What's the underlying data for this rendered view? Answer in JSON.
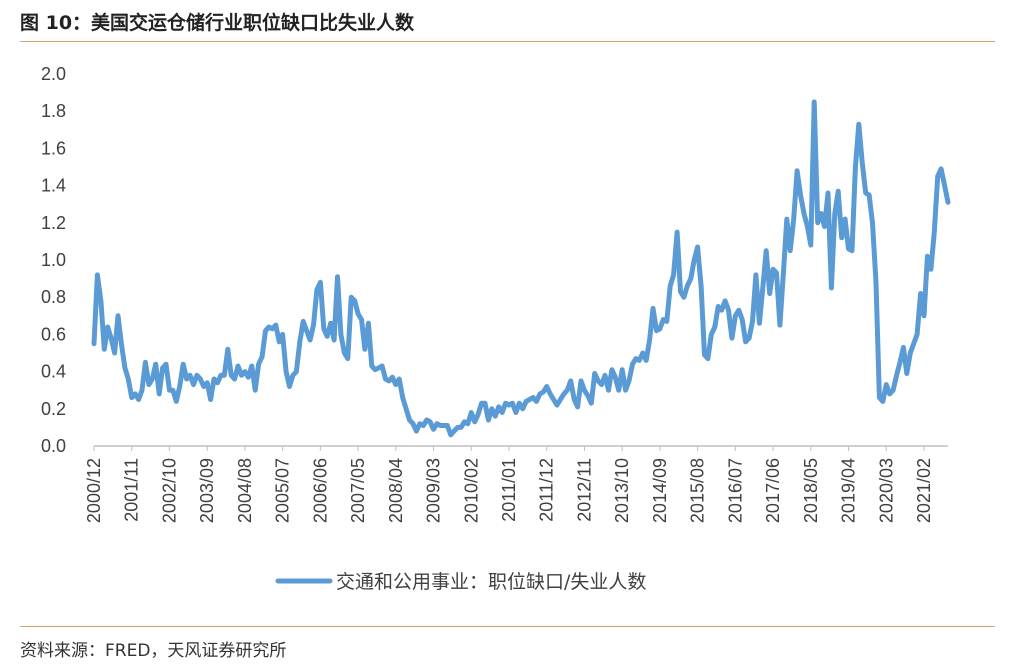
{
  "figure": {
    "title": "图 10：美国交运仓储行业职位缺口比失业人数",
    "source": "资料来源：FRED，天风证券研究所"
  },
  "colors": {
    "line": "#5B9BD5",
    "rule": "#E0A060",
    "axis": "#BFBFBF"
  },
  "chart_data": {
    "type": "line",
    "title": "",
    "xlabel": "",
    "ylabel": "",
    "ylim": [
      0,
      2.0
    ],
    "yticks": [
      "0.0",
      "0.2",
      "0.4",
      "0.6",
      "0.8",
      "1.0",
      "1.2",
      "1.4",
      "1.6",
      "1.8",
      "2.0"
    ],
    "xticks": [
      "2000/12",
      "2001/11",
      "2002/10",
      "2003/09",
      "2004/08",
      "2005/07",
      "2006/06",
      "2007/05",
      "2008/04",
      "2009/03",
      "2010/02",
      "2011/01",
      "2011/12",
      "2012/11",
      "2013/10",
      "2014/09",
      "2015/08",
      "2016/07",
      "2017/06",
      "2018/05",
      "2019/04",
      "2020/03",
      "2021/02"
    ],
    "x_range": [
      "2000/12",
      "2021/09"
    ],
    "grid": false,
    "legend": "bottom",
    "series": [
      {
        "name": "交通和公用事业：职位缺口/失业人数",
        "points": [
          [
            "2000/12",
            0.55
          ],
          [
            "2001/01",
            0.92
          ],
          [
            "2001/02",
            0.78
          ],
          [
            "2001/03",
            0.52
          ],
          [
            "2001/04",
            0.64
          ],
          [
            "2001/05",
            0.58
          ],
          [
            "2001/06",
            0.5
          ],
          [
            "2001/07",
            0.7
          ],
          [
            "2001/08",
            0.55
          ],
          [
            "2001/09",
            0.42
          ],
          [
            "2001/10",
            0.36
          ],
          [
            "2001/11",
            0.26
          ],
          [
            "2001/12",
            0.28
          ],
          [
            "2002/01",
            0.25
          ],
          [
            "2002/02",
            0.3
          ],
          [
            "2002/03",
            0.45
          ],
          [
            "2002/04",
            0.33
          ],
          [
            "2002/05",
            0.36
          ],
          [
            "2002/06",
            0.44
          ],
          [
            "2002/07",
            0.28
          ],
          [
            "2002/08",
            0.42
          ],
          [
            "2002/09",
            0.44
          ],
          [
            "2002/10",
            0.3
          ],
          [
            "2002/11",
            0.3
          ],
          [
            "2002/12",
            0.24
          ],
          [
            "2003/01",
            0.32
          ],
          [
            "2003/02",
            0.44
          ],
          [
            "2003/03",
            0.36
          ],
          [
            "2003/04",
            0.38
          ],
          [
            "2003/05",
            0.33
          ],
          [
            "2003/06",
            0.38
          ],
          [
            "2003/07",
            0.36
          ],
          [
            "2003/08",
            0.32
          ],
          [
            "2003/09",
            0.34
          ],
          [
            "2003/10",
            0.25
          ],
          [
            "2003/11",
            0.36
          ],
          [
            "2003/12",
            0.34
          ],
          [
            "2004/01",
            0.38
          ],
          [
            "2004/02",
            0.38
          ],
          [
            "2004/03",
            0.52
          ],
          [
            "2004/04",
            0.38
          ],
          [
            "2004/05",
            0.36
          ],
          [
            "2004/06",
            0.43
          ],
          [
            "2004/07",
            0.38
          ],
          [
            "2004/08",
            0.4
          ],
          [
            "2004/09",
            0.37
          ],
          [
            "2004/10",
            0.43
          ],
          [
            "2004/11",
            0.3
          ],
          [
            "2004/12",
            0.44
          ],
          [
            "2005/01",
            0.48
          ],
          [
            "2005/02",
            0.62
          ],
          [
            "2005/03",
            0.64
          ],
          [
            "2005/04",
            0.63
          ],
          [
            "2005/05",
            0.65
          ],
          [
            "2005/06",
            0.56
          ],
          [
            "2005/07",
            0.6
          ],
          [
            "2005/08",
            0.4
          ],
          [
            "2005/09",
            0.32
          ],
          [
            "2005/10",
            0.38
          ],
          [
            "2005/11",
            0.4
          ],
          [
            "2005/12",
            0.56
          ],
          [
            "2006/01",
            0.67
          ],
          [
            "2006/02",
            0.62
          ],
          [
            "2006/03",
            0.57
          ],
          [
            "2006/04",
            0.65
          ],
          [
            "2006/05",
            0.84
          ],
          [
            "2006/06",
            0.88
          ],
          [
            "2006/07",
            0.63
          ],
          [
            "2006/08",
            0.59
          ],
          [
            "2006/09",
            0.66
          ],
          [
            "2006/10",
            0.57
          ],
          [
            "2006/11",
            0.91
          ],
          [
            "2006/12",
            0.6
          ],
          [
            "2007/01",
            0.5
          ],
          [
            "2007/02",
            0.47
          ],
          [
            "2007/03",
            0.8
          ],
          [
            "2007/04",
            0.78
          ],
          [
            "2007/05",
            0.71
          ],
          [
            "2007/06",
            0.68
          ],
          [
            "2007/07",
            0.52
          ],
          [
            "2007/08",
            0.66
          ],
          [
            "2007/09",
            0.43
          ],
          [
            "2007/10",
            0.41
          ],
          [
            "2007/11",
            0.42
          ],
          [
            "2007/12",
            0.43
          ],
          [
            "2008/01",
            0.36
          ],
          [
            "2008/02",
            0.35
          ],
          [
            "2008/03",
            0.37
          ],
          [
            "2008/04",
            0.33
          ],
          [
            "2008/05",
            0.36
          ],
          [
            "2008/06",
            0.26
          ],
          [
            "2008/07",
            0.2
          ],
          [
            "2008/08",
            0.14
          ],
          [
            "2008/09",
            0.12
          ],
          [
            "2008/10",
            0.08
          ],
          [
            "2008/11",
            0.12
          ],
          [
            "2008/12",
            0.11
          ],
          [
            "2009/01",
            0.14
          ],
          [
            "2009/02",
            0.13
          ],
          [
            "2009/03",
            0.09
          ],
          [
            "2009/04",
            0.12
          ],
          [
            "2009/05",
            0.11
          ],
          [
            "2009/06",
            0.11
          ],
          [
            "2009/07",
            0.11
          ],
          [
            "2009/08",
            0.06
          ],
          [
            "2009/09",
            0.08
          ],
          [
            "2009/10",
            0.1
          ],
          [
            "2009/11",
            0.1
          ],
          [
            "2009/12",
            0.13
          ],
          [
            "2010/01",
            0.12
          ],
          [
            "2010/02",
            0.18
          ],
          [
            "2010/03",
            0.13
          ],
          [
            "2010/04",
            0.17
          ],
          [
            "2010/05",
            0.23
          ],
          [
            "2010/06",
            0.23
          ],
          [
            "2010/07",
            0.14
          ],
          [
            "2010/08",
            0.2
          ],
          [
            "2010/09",
            0.16
          ],
          [
            "2010/10",
            0.21
          ],
          [
            "2010/11",
            0.18
          ],
          [
            "2010/12",
            0.23
          ],
          [
            "2011/01",
            0.22
          ],
          [
            "2011/02",
            0.23
          ],
          [
            "2011/03",
            0.18
          ],
          [
            "2011/04",
            0.23
          ],
          [
            "2011/05",
            0.2
          ],
          [
            "2011/06",
            0.24
          ],
          [
            "2011/07",
            0.25
          ],
          [
            "2011/08",
            0.26
          ],
          [
            "2011/09",
            0.24
          ],
          [
            "2011/10",
            0.28
          ],
          [
            "2011/11",
            0.29
          ],
          [
            "2011/12",
            0.32
          ],
          [
            "2012/01",
            0.28
          ],
          [
            "2012/02",
            0.25
          ],
          [
            "2012/03",
            0.22
          ],
          [
            "2012/04",
            0.25
          ],
          [
            "2012/05",
            0.28
          ],
          [
            "2012/06",
            0.3
          ],
          [
            "2012/07",
            0.35
          ],
          [
            "2012/08",
            0.25
          ],
          [
            "2012/09",
            0.21
          ],
          [
            "2012/10",
            0.35
          ],
          [
            "2012/11",
            0.3
          ],
          [
            "2012/12",
            0.27
          ],
          [
            "2013/01",
            0.23
          ],
          [
            "2013/02",
            0.39
          ],
          [
            "2013/03",
            0.35
          ],
          [
            "2013/04",
            0.33
          ],
          [
            "2013/05",
            0.38
          ],
          [
            "2013/06",
            0.3
          ],
          [
            "2013/07",
            0.41
          ],
          [
            "2013/08",
            0.37
          ],
          [
            "2013/09",
            0.3
          ],
          [
            "2013/10",
            0.41
          ],
          [
            "2013/11",
            0.3
          ],
          [
            "2013/12",
            0.35
          ],
          [
            "2014/01",
            0.44
          ],
          [
            "2014/02",
            0.47
          ],
          [
            "2014/03",
            0.46
          ],
          [
            "2014/04",
            0.5
          ],
          [
            "2014/05",
            0.46
          ],
          [
            "2014/06",
            0.57
          ],
          [
            "2014/07",
            0.74
          ],
          [
            "2014/08",
            0.62
          ],
          [
            "2014/09",
            0.63
          ],
          [
            "2014/10",
            0.68
          ],
          [
            "2014/11",
            0.67
          ],
          [
            "2014/12",
            0.86
          ],
          [
            "2015/01",
            0.92
          ],
          [
            "2015/02",
            1.15
          ],
          [
            "2015/03",
            0.83
          ],
          [
            "2015/04",
            0.8
          ],
          [
            "2015/05",
            0.86
          ],
          [
            "2015/06",
            0.9
          ],
          [
            "2015/07",
            1.0
          ],
          [
            "2015/08",
            1.07
          ],
          [
            "2015/09",
            0.86
          ],
          [
            "2015/10",
            0.49
          ],
          [
            "2015/11",
            0.47
          ],
          [
            "2015/12",
            0.6
          ],
          [
            "2016/01",
            0.64
          ],
          [
            "2016/02",
            0.75
          ],
          [
            "2016/03",
            0.73
          ],
          [
            "2016/04",
            0.78
          ],
          [
            "2016/05",
            0.73
          ],
          [
            "2016/06",
            0.58
          ],
          [
            "2016/07",
            0.7
          ],
          [
            "2016/08",
            0.73
          ],
          [
            "2016/09",
            0.68
          ],
          [
            "2016/10",
            0.56
          ],
          [
            "2016/11",
            0.58
          ],
          [
            "2016/12",
            0.67
          ],
          [
            "2017/01",
            0.92
          ],
          [
            "2017/02",
            0.66
          ],
          [
            "2017/03",
            0.85
          ],
          [
            "2017/04",
            1.05
          ],
          [
            "2017/05",
            0.82
          ],
          [
            "2017/06",
            0.95
          ],
          [
            "2017/07",
            0.93
          ],
          [
            "2017/08",
            0.65
          ],
          [
            "2017/09",
            0.93
          ],
          [
            "2017/10",
            1.22
          ],
          [
            "2017/11",
            1.05
          ],
          [
            "2017/12",
            1.22
          ],
          [
            "2018/01",
            1.48
          ],
          [
            "2018/02",
            1.35
          ],
          [
            "2018/03",
            1.25
          ],
          [
            "2018/04",
            1.18
          ],
          [
            "2018/05",
            1.08
          ],
          [
            "2018/06",
            1.85
          ],
          [
            "2018/07",
            1.2
          ],
          [
            "2018/08",
            1.25
          ],
          [
            "2018/09",
            1.18
          ],
          [
            "2018/10",
            1.36
          ],
          [
            "2018/11",
            0.85
          ],
          [
            "2018/12",
            1.25
          ],
          [
            "2019/01",
            1.37
          ],
          [
            "2019/02",
            1.12
          ],
          [
            "2019/03",
            1.22
          ],
          [
            "2019/04",
            1.06
          ],
          [
            "2019/05",
            1.05
          ],
          [
            "2019/06",
            1.5
          ],
          [
            "2019/07",
            1.73
          ],
          [
            "2019/08",
            1.52
          ],
          [
            "2019/09",
            1.36
          ],
          [
            "2019/10",
            1.35
          ],
          [
            "2019/11",
            1.2
          ],
          [
            "2019/12",
            0.88
          ],
          [
            "2020/01",
            0.26
          ],
          [
            "2020/02",
            0.24
          ],
          [
            "2020/03",
            0.33
          ],
          [
            "2020/04",
            0.28
          ],
          [
            "2020/05",
            0.3
          ],
          [
            "2020/06",
            0.38
          ],
          [
            "2020/07",
            0.45
          ],
          [
            "2020/08",
            0.53
          ],
          [
            "2020/09",
            0.39
          ],
          [
            "2020/10",
            0.5
          ],
          [
            "2020/11",
            0.55
          ],
          [
            "2020/12",
            0.6
          ],
          [
            "2021/01",
            0.82
          ],
          [
            "2021/02",
            0.7
          ],
          [
            "2021/03",
            1.02
          ],
          [
            "2021/04",
            0.95
          ],
          [
            "2021/05",
            1.15
          ],
          [
            "2021/06",
            1.45
          ],
          [
            "2021/07",
            1.49
          ],
          [
            "2021/08",
            1.4
          ],
          [
            "2021/09",
            1.31
          ]
        ]
      }
    ]
  }
}
